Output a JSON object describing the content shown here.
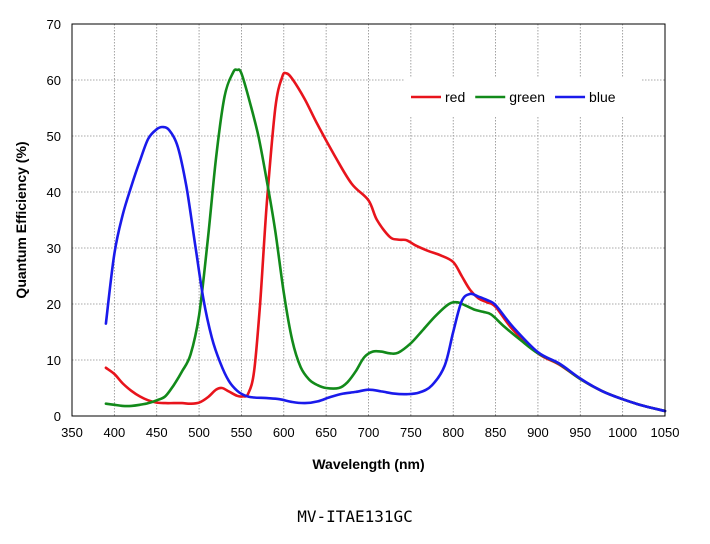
{
  "chart_data": {
    "type": "line",
    "xlabel": "Wavelength (nm)",
    "ylabel": "Quantum Efficiency (%)",
    "xlim": [
      350,
      1050
    ],
    "ylim": [
      0,
      70
    ],
    "xticks": [
      350,
      400,
      450,
      500,
      550,
      600,
      650,
      700,
      750,
      800,
      850,
      900,
      950,
      1000,
      1050
    ],
    "yticks": [
      0,
      10,
      20,
      30,
      40,
      50,
      60,
      70
    ],
    "grid": true,
    "legend_position": "top-right",
    "series": [
      {
        "name": "red",
        "color": "#e8141c",
        "points": [
          [
            390,
            8.6
          ],
          [
            400,
            7.5
          ],
          [
            410,
            5.8
          ],
          [
            420,
            4.5
          ],
          [
            430,
            3.5
          ],
          [
            440,
            2.8
          ],
          [
            450,
            2.4
          ],
          [
            460,
            2.3
          ],
          [
            470,
            2.3
          ],
          [
            480,
            2.3
          ],
          [
            490,
            2.2
          ],
          [
            500,
            2.4
          ],
          [
            510,
            3.3
          ],
          [
            520,
            4.7
          ],
          [
            527,
            5.0
          ],
          [
            535,
            4.4
          ],
          [
            545,
            3.6
          ],
          [
            552,
            3.5
          ],
          [
            558,
            4.0
          ],
          [
            565,
            8
          ],
          [
            572,
            20
          ],
          [
            580,
            38
          ],
          [
            590,
            55
          ],
          [
            598,
            60.5
          ],
          [
            603,
            61.2
          ],
          [
            610,
            60.2
          ],
          [
            625,
            56.5
          ],
          [
            640,
            52
          ],
          [
            660,
            46.5
          ],
          [
            680,
            41.5
          ],
          [
            700,
            38.5
          ],
          [
            710,
            35
          ],
          [
            725,
            32
          ],
          [
            735,
            31.5
          ],
          [
            745,
            31.4
          ],
          [
            755,
            30.5
          ],
          [
            770,
            29.5
          ],
          [
            785,
            28.7
          ],
          [
            800,
            27.5
          ],
          [
            810,
            25
          ],
          [
            820,
            22.5
          ],
          [
            830,
            21
          ],
          [
            840,
            20.3
          ],
          [
            850,
            19.5
          ],
          [
            870,
            15.5
          ],
          [
            900,
            11.2
          ],
          [
            925,
            9.2
          ],
          [
            950,
            6.6
          ],
          [
            975,
            4.5
          ],
          [
            1000,
            3.0
          ],
          [
            1025,
            1.8
          ],
          [
            1050,
            0.9
          ]
        ]
      },
      {
        "name": "green",
        "color": "#128a1a",
        "points": [
          [
            390,
            2.2
          ],
          [
            400,
            2.0
          ],
          [
            410,
            1.8
          ],
          [
            420,
            1.8
          ],
          [
            430,
            2.0
          ],
          [
            440,
            2.3
          ],
          [
            450,
            2.8
          ],
          [
            460,
            3.5
          ],
          [
            470,
            5.5
          ],
          [
            480,
            8
          ],
          [
            490,
            11
          ],
          [
            500,
            18
          ],
          [
            510,
            31
          ],
          [
            520,
            46
          ],
          [
            530,
            57
          ],
          [
            540,
            61.3
          ],
          [
            545,
            61.8
          ],
          [
            550,
            61.2
          ],
          [
            560,
            56
          ],
          [
            570,
            50
          ],
          [
            580,
            42
          ],
          [
            590,
            33
          ],
          [
            600,
            22
          ],
          [
            610,
            13.5
          ],
          [
            620,
            8.7
          ],
          [
            630,
            6.5
          ],
          [
            640,
            5.5
          ],
          [
            650,
            5.0
          ],
          [
            665,
            5.0
          ],
          [
            675,
            6
          ],
          [
            685,
            8
          ],
          [
            695,
            10.5
          ],
          [
            705,
            11.5
          ],
          [
            715,
            11.5
          ],
          [
            725,
            11.2
          ],
          [
            735,
            11.3
          ],
          [
            750,
            13
          ],
          [
            765,
            15.5
          ],
          [
            780,
            18
          ],
          [
            795,
            20
          ],
          [
            805,
            20.3
          ],
          [
            815,
            19.7
          ],
          [
            825,
            19
          ],
          [
            835,
            18.6
          ],
          [
            845,
            18.1
          ],
          [
            860,
            16
          ],
          [
            880,
            13.5
          ],
          [
            900,
            11.2
          ],
          [
            925,
            9.3
          ],
          [
            950,
            6.6
          ],
          [
            975,
            4.5
          ],
          [
            1000,
            3.0
          ],
          [
            1025,
            1.8
          ],
          [
            1050,
            0.9
          ]
        ]
      },
      {
        "name": "blue",
        "color": "#1a1aeb",
        "points": [
          [
            390,
            16.5
          ],
          [
            400,
            29
          ],
          [
            410,
            36
          ],
          [
            420,
            41
          ],
          [
            430,
            45.5
          ],
          [
            440,
            49.5
          ],
          [
            450,
            51.2
          ],
          [
            457,
            51.6
          ],
          [
            465,
            51
          ],
          [
            475,
            48
          ],
          [
            485,
            41
          ],
          [
            495,
            31
          ],
          [
            505,
            21
          ],
          [
            515,
            14
          ],
          [
            525,
            9.5
          ],
          [
            535,
            6.3
          ],
          [
            545,
            4.5
          ],
          [
            555,
            3.6
          ],
          [
            565,
            3.3
          ],
          [
            580,
            3.2
          ],
          [
            595,
            3.0
          ],
          [
            610,
            2.5
          ],
          [
            625,
            2.3
          ],
          [
            640,
            2.6
          ],
          [
            655,
            3.4
          ],
          [
            670,
            4.0
          ],
          [
            685,
            4.3
          ],
          [
            700,
            4.7
          ],
          [
            715,
            4.4
          ],
          [
            730,
            4.0
          ],
          [
            745,
            3.9
          ],
          [
            760,
            4.2
          ],
          [
            775,
            5.5
          ],
          [
            790,
            9
          ],
          [
            800,
            15
          ],
          [
            810,
            20.5
          ],
          [
            820,
            21.8
          ],
          [
            830,
            21.3
          ],
          [
            840,
            20.7
          ],
          [
            850,
            19.8
          ],
          [
            870,
            16
          ],
          [
            900,
            11.4
          ],
          [
            925,
            9.4
          ],
          [
            950,
            6.7
          ],
          [
            975,
            4.5
          ],
          [
            1000,
            3.0
          ],
          [
            1025,
            1.8
          ],
          [
            1050,
            0.9
          ]
        ]
      }
    ]
  },
  "caption": "MV-ITAE131GC"
}
